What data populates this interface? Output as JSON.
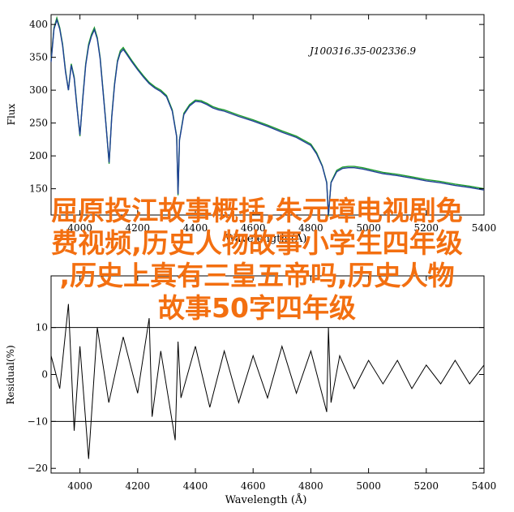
{
  "chart_data": [
    {
      "type": "line",
      "annotation": "J100316.35-002336.9",
      "ylabel": "Flux",
      "xlabel": "Wavelength (Å)",
      "xlim": [
        3900,
        5400
      ],
      "ylim": [
        110,
        415
      ],
      "x_ticks": [
        4000,
        4200,
        4400,
        4600,
        4800,
        5000,
        5200,
        5400
      ],
      "x_tick_labels": [
        "4000",
        "4200",
        "4400",
        "4600",
        "4800",
        "5000",
        "5200",
        "5400"
      ],
      "y_ticks": [
        150,
        200,
        250,
        300,
        350,
        400
      ],
      "y_tick_labels": [
        "150",
        "200",
        "250",
        "300",
        "350",
        "400"
      ],
      "colors": {
        "observed": "#1e9c2e",
        "model": "#1f3f96"
      },
      "series": [
        {
          "color_key": "observed",
          "x": [
            3900,
            3910,
            3920,
            3930,
            3940,
            3950,
            3960,
            3970,
            3980,
            3990,
            4000,
            4010,
            4020,
            4030,
            4040,
            4050,
            4060,
            4070,
            4080,
            4090,
            4101,
            4110,
            4120,
            4130,
            4140,
            4150,
            4160,
            4180,
            4200,
            4220,
            4240,
            4260,
            4280,
            4300,
            4320,
            4335,
            4340,
            4345,
            4360,
            4380,
            4400,
            4420,
            4440,
            4460,
            4480,
            4500,
            4550,
            4600,
            4650,
            4700,
            4750,
            4800,
            4820,
            4840,
            4855,
            4861,
            4870,
            4890,
            4910,
            4930,
            4950,
            4980,
            5000,
            5050,
            5100,
            5150,
            5200,
            5250,
            5300,
            5350,
            5400
          ],
          "y": [
            345,
            395,
            410,
            395,
            370,
            330,
            300,
            340,
            320,
            275,
            230,
            290,
            340,
            370,
            385,
            395,
            380,
            350,
            300,
            250,
            188,
            260,
            310,
            345,
            360,
            365,
            358,
            345,
            333,
            322,
            312,
            305,
            300,
            292,
            270,
            230,
            140,
            225,
            265,
            278,
            285,
            284,
            280,
            275,
            272,
            270,
            262,
            255,
            247,
            238,
            230,
            218,
            205,
            185,
            160,
            108,
            160,
            178,
            183,
            184,
            184,
            182,
            180,
            175,
            172,
            168,
            164,
            161,
            157,
            154,
            150
          ]
        },
        {
          "color_key": "model",
          "x": [
            3900,
            3910,
            3920,
            3930,
            3940,
            3950,
            3960,
            3970,
            3980,
            3990,
            4000,
            4010,
            4020,
            4030,
            4040,
            4050,
            4060,
            4070,
            4080,
            4090,
            4101,
            4110,
            4120,
            4130,
            4140,
            4150,
            4160,
            4180,
            4200,
            4220,
            4240,
            4260,
            4280,
            4300,
            4320,
            4335,
            4340,
            4345,
            4360,
            4380,
            4400,
            4420,
            4440,
            4460,
            4480,
            4500,
            4550,
            4600,
            4650,
            4700,
            4750,
            4800,
            4820,
            4840,
            4855,
            4861,
            4870,
            4890,
            4910,
            4930,
            4950,
            4980,
            5000,
            5050,
            5100,
            5150,
            5200,
            5250,
            5300,
            5350,
            5400
          ],
          "y": [
            343,
            393,
            407,
            393,
            368,
            328,
            300,
            338,
            318,
            273,
            232,
            288,
            338,
            367,
            382,
            392,
            378,
            348,
            298,
            249,
            190,
            258,
            308,
            343,
            357,
            362,
            356,
            343,
            331,
            320,
            310,
            303,
            298,
            290,
            268,
            229,
            142,
            224,
            263,
            276,
            283,
            282,
            278,
            273,
            270,
            268,
            260,
            253,
            245,
            236,
            228,
            216,
            203,
            184,
            159,
            110,
            159,
            176,
            181,
            182,
            182,
            180,
            178,
            173,
            170,
            166,
            162,
            159,
            155,
            152,
            148
          ]
        }
      ]
    },
    {
      "type": "line",
      "ylabel": "Residual(%)",
      "xlabel": "Wavelength (Å)",
      "xlim": [
        3900,
        5400
      ],
      "ylim": [
        -21,
        21
      ],
      "reference_lines": [
        10,
        -10
      ],
      "x_ticks": [
        4000,
        4200,
        4400,
        4600,
        4800,
        5000,
        5200,
        5400
      ],
      "x_tick_labels": [
        "4000",
        "4200",
        "4400",
        "4600",
        "4800",
        "5000",
        "5200",
        "5400"
      ],
      "y_ticks": [
        10,
        0,
        -10,
        -20
      ],
      "y_tick_labels": [
        "10",
        "0",
        "−10",
        "−20"
      ],
      "series": [
        {
          "color": "#000000",
          "x": [
            3900,
            3930,
            3960,
            3980,
            4000,
            4030,
            4060,
            4100,
            4150,
            4200,
            4240,
            4250,
            4280,
            4330,
            4340,
            4350,
            4400,
            4450,
            4500,
            4550,
            4600,
            4650,
            4700,
            4750,
            4800,
            4855,
            4861,
            4870,
            4900,
            4950,
            5000,
            5050,
            5100,
            5150,
            5200,
            5250,
            5300,
            5350,
            5400
          ],
          "y": [
            4,
            -3,
            15,
            -12,
            6,
            -18,
            10,
            -6,
            8,
            -4,
            12,
            -9,
            5,
            -14,
            7,
            -5,
            6,
            -7,
            5,
            -6,
            4,
            -5,
            6,
            -4,
            5,
            -8,
            10,
            -6,
            4,
            -3,
            3,
            -2,
            3,
            -3,
            2,
            -2,
            3,
            -2,
            2
          ]
        }
      ]
    }
  ],
  "overlay_text": {
    "line1": "屈原投江故事概括,朱元璋电视剧免",
    "line2": "费视频,历史人物故事小学生四年级",
    "line3": ",历史上真有三皇五帝吗,历史人物",
    "line4": "故事50字四年级"
  }
}
